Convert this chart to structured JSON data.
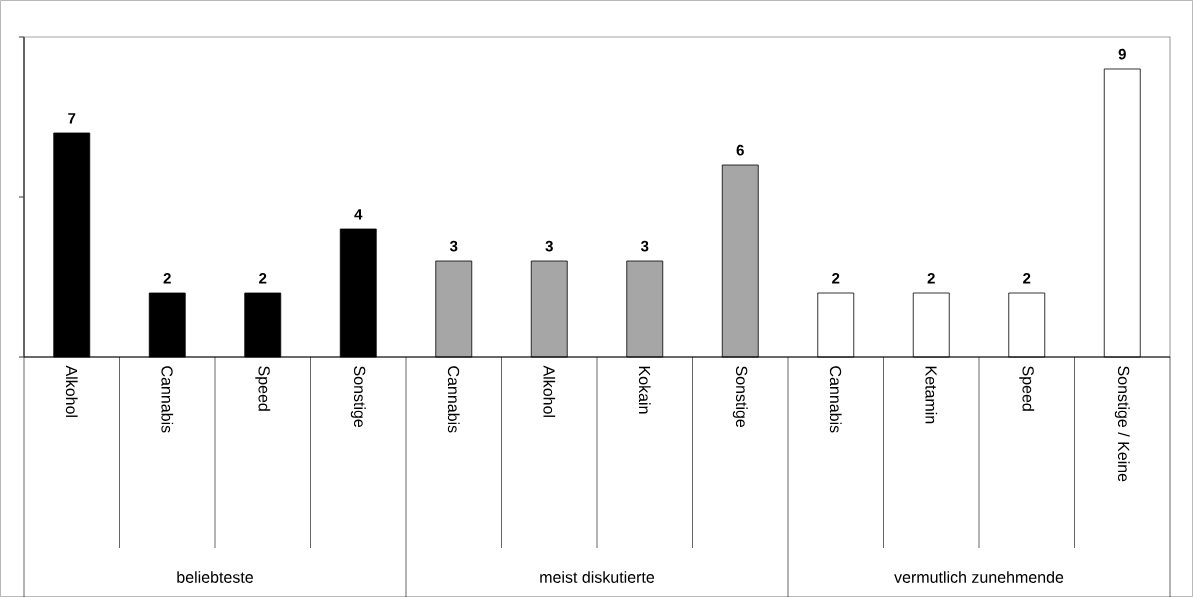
{
  "chart_data": {
    "type": "bar",
    "categories": [
      "Alkohol",
      "Cannabis",
      "Speed",
      "Sonstige",
      "Cannabis",
      "Alkohol",
      "Kokain",
      "Sonstige",
      "Cannabis",
      "Ketamin",
      "Speed",
      "Sonstige / Keine"
    ],
    "values": [
      7,
      2,
      2,
      4,
      3,
      3,
      3,
      6,
      2,
      2,
      2,
      9
    ],
    "colors": [
      "#000000",
      "#000000",
      "#000000",
      "#000000",
      "#a6a6a6",
      "#a6a6a6",
      "#a6a6a6",
      "#a6a6a6",
      "#ffffff",
      "#ffffff",
      "#ffffff",
      "#ffffff"
    ],
    "annotations": [
      "beliebteste",
      "meist diskutierte",
      "vermutlich zunehmende"
    ],
    "ylim": [
      0,
      10
    ],
    "yticks": [
      {
        "value": 0,
        "label": null
      },
      {
        "value": 5,
        "label": null
      },
      {
        "value": 10,
        "label": null
      }
    ],
    "tick_labels": "x",
    "data_labels": true
  }
}
